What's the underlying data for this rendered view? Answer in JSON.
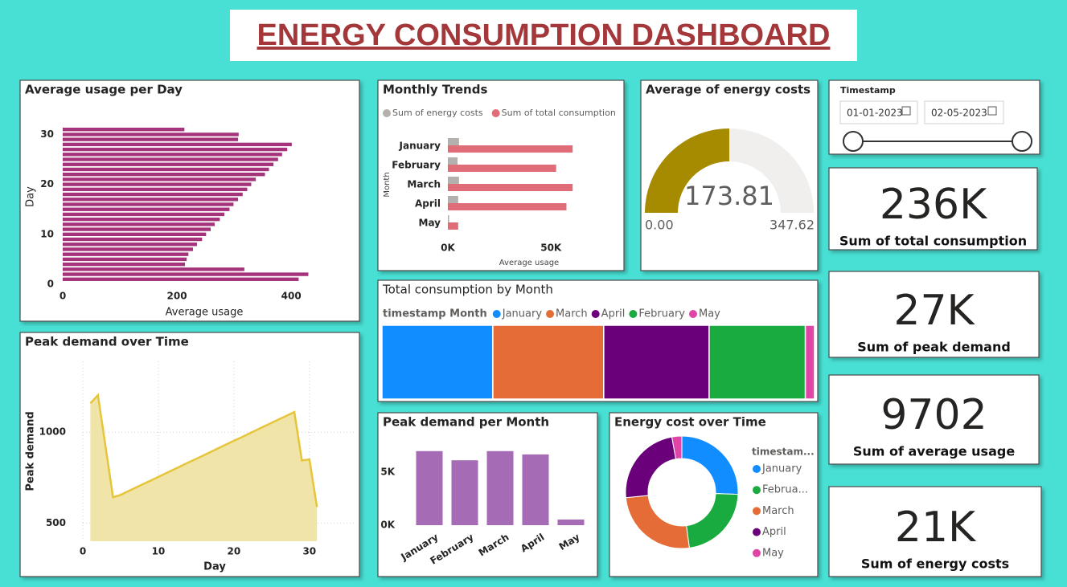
{
  "title": "ENERGY CONSUMPTION DASHBOARD",
  "slicer": {
    "title": "Timestamp",
    "start": "01-01-2023",
    "end": "02-05-2023"
  },
  "cards": [
    {
      "value": "236K",
      "label": "Sum of total consumption"
    },
    {
      "value": "27K",
      "label": "Sum of peak demand"
    },
    {
      "value": "9702",
      "label": "Sum of average usage"
    },
    {
      "value": "21K",
      "label": "Sum of energy costs"
    }
  ],
  "chart_data": [
    {
      "type": "hbar",
      "title": "Average usage per Day",
      "x_label": "Average usage",
      "y_label": "Day",
      "y": [
        1,
        2,
        3,
        4,
        5,
        6,
        7,
        8,
        9,
        10,
        11,
        12,
        13,
        14,
        15,
        16,
        17,
        18,
        19,
        20,
        21,
        22,
        23,
        24,
        25,
        26,
        27,
        28,
        29,
        30,
        31
      ],
      "values": [
        413,
        430,
        318,
        214,
        217,
        220,
        228,
        235,
        244,
        251,
        259,
        266,
        275,
        283,
        292,
        299,
        307,
        315,
        323,
        330,
        338,
        354,
        361,
        369,
        377,
        384,
        393,
        401,
        307,
        308,
        213
      ],
      "color": "#a5337c",
      "xlim": [
        0,
        480
      ],
      "xticks": [
        0,
        200,
        400
      ],
      "ylim": [
        0,
        32
      ],
      "yticks": [
        0,
        10,
        20,
        30
      ]
    },
    {
      "type": "area",
      "title": "Peak demand over Time",
      "x_label": "Day",
      "y_label": "Peak demand",
      "x": [
        1,
        2,
        3,
        4,
        5,
        6,
        7,
        8,
        9,
        10,
        11,
        12,
        13,
        14,
        15,
        16,
        17,
        18,
        19,
        20,
        21,
        22,
        23,
        24,
        25,
        26,
        27,
        28,
        29,
        30,
        31
      ],
      "values": [
        1159,
        1204,
        923,
        642,
        655,
        675,
        695,
        715,
        734,
        754,
        774,
        794,
        814,
        834,
        853,
        873,
        893,
        913,
        933,
        953,
        972,
        992,
        1012,
        1032,
        1052,
        1072,
        1091,
        1111,
        845,
        850,
        588
      ],
      "color": "#e6c53a",
      "fill": "#f0e4a8",
      "xlim": [
        0,
        33
      ],
      "xticks": [
        0,
        10,
        20,
        30
      ],
      "ylim": [
        400,
        1390
      ],
      "yticks": [
        500,
        1000
      ],
      "grid": true
    },
    {
      "type": "hbar-grouped",
      "title": "Monthly Trends",
      "x_label": "Average usage",
      "y_label": "Month",
      "categories": [
        "January",
        "February",
        "March",
        "April",
        "May"
      ],
      "series": [
        {
          "name": "Sum of energy costs",
          "color": "#b3b0ad",
          "values": [
            5400,
            4700,
            5400,
            5000,
            600
          ]
        },
        {
          "name": "Sum of total consumption",
          "color": "#e06c78",
          "values": [
            60500,
            52500,
            60500,
            57500,
            5000
          ]
        }
      ],
      "xlim": [
        0,
        62000
      ],
      "xticks": [
        {
          "value": 0,
          "label": "0K"
        },
        {
          "value": 50000,
          "label": "50K"
        }
      ]
    },
    {
      "type": "gauge",
      "title": "Average of energy costs",
      "value": 173.81,
      "min": {
        "value": 0,
        "label": "0.00"
      },
      "max": 347.62,
      "color": "#a68a00",
      "track": "#f0efee"
    },
    {
      "type": "treemap",
      "title": "Total consumption by Month",
      "legend_title": "timestamp Month",
      "categories": [
        "January",
        "March",
        "April",
        "February",
        "May"
      ],
      "values": [
        60500,
        60500,
        57500,
        52500,
        5000
      ],
      "colors": [
        "#118dff",
        "#e66c37",
        "#6b007b",
        "#1aab40",
        "#e044a7"
      ]
    },
    {
      "type": "column",
      "title": "Peak demand per Month",
      "categories": [
        "January",
        "February",
        "March",
        "April",
        "May"
      ],
      "values": [
        6960,
        6100,
        6960,
        6650,
        530
      ],
      "color": "#a66bb5",
      "ylim": [
        0,
        8000
      ],
      "yticks": [
        {
          "value": 0,
          "label": "0K"
        },
        {
          "value": 5000,
          "label": "5K"
        }
      ]
    },
    {
      "type": "donut",
      "title": "Energy cost over Time",
      "legend_title": "timestam...",
      "categories": [
        "January",
        "Februa...",
        "March",
        "April",
        "May"
      ],
      "values": [
        5400,
        4700,
        5400,
        5000,
        600
      ],
      "colors": [
        "#118dff",
        "#1aab40",
        "#e66c37",
        "#6b007b",
        "#e044a7"
      ]
    }
  ]
}
